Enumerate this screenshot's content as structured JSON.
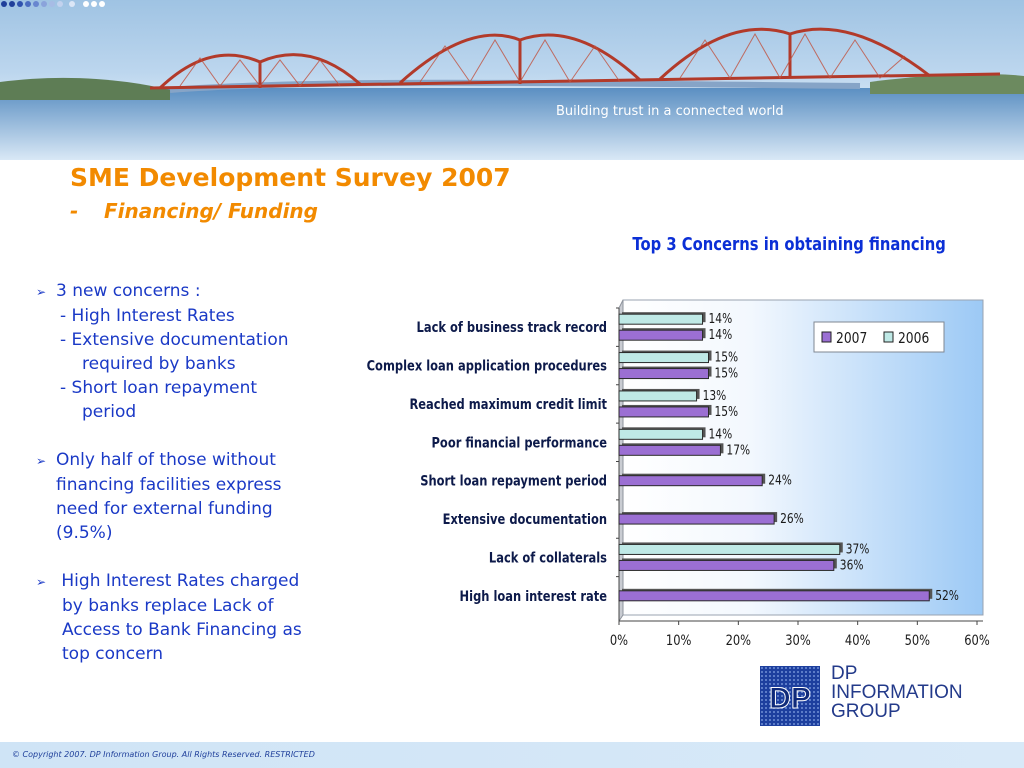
{
  "header": {
    "tagline": "Building trust in a connected world"
  },
  "slide": {
    "title": "SME Development Survey 2007",
    "subtitle_dash": "-",
    "subtitle": "Financing/ Funding"
  },
  "bullets": [
    {
      "arrow": true,
      "text": "3 new concerns :"
    },
    {
      "arrow": false,
      "text": "-  High Interest Rates",
      "indent": 24
    },
    {
      "arrow": false,
      "text": "-  Extensive documentation",
      "indent": 24
    },
    {
      "arrow": false,
      "text": "required by banks",
      "indent": 46
    },
    {
      "arrow": false,
      "text": "-  Short loan repayment",
      "indent": 24
    },
    {
      "arrow": false,
      "text": "period",
      "indent": 46
    },
    {
      "gap": true
    },
    {
      "arrow": true,
      "text": "Only half of those without"
    },
    {
      "arrow": false,
      "text": "financing facilities express",
      "indent": 20
    },
    {
      "arrow": false,
      "text": "need for external funding",
      "indent": 20
    },
    {
      "arrow": false,
      "text": "(9.5%)",
      "indent": 20
    },
    {
      "gap": true
    },
    {
      "arrow": true,
      "text": " High Interest Rates charged"
    },
    {
      "arrow": false,
      "text": "by banks replace Lack of",
      "indent": 26
    },
    {
      "arrow": false,
      "text": "Access to Bank Financing as",
      "indent": 26
    },
    {
      "arrow": false,
      "text": "top concern",
      "indent": 26
    }
  ],
  "chart_data": {
    "type": "bar",
    "orientation": "horizontal",
    "title": "Top 3 Concerns in obtaining financing",
    "categories": [
      "Lack of business track record",
      "Complex loan application procedures",
      "Reached maximum credit limit",
      "Poor financial performance",
      "Short loan repayment period",
      "Extensive documentation",
      "Lack of collaterals",
      "High loan interest rate"
    ],
    "series": [
      {
        "name": "2007",
        "color": "#9b6fd3",
        "values": [
          14,
          15,
          15,
          17,
          24,
          26,
          36,
          52
        ]
      },
      {
        "name": "2006",
        "color": "#bfe9e6",
        "values": [
          14,
          15,
          13,
          14,
          null,
          null,
          37,
          null
        ]
      }
    ],
    "value_suffix": "%",
    "xlim": [
      0,
      60
    ],
    "xticks": [
      "0%",
      "10%",
      "20%",
      "30%",
      "40%",
      "50%",
      "60%"
    ],
    "legend_position": "top-right",
    "grid": false,
    "colors": {
      "title": "#0b2fd6",
      "labels": "#0d1a4a",
      "plot_bg_right": "#9cc9f5"
    }
  },
  "logo": {
    "initials": "DP",
    "lines": [
      "DP",
      "INFORMATION",
      "GROUP"
    ]
  },
  "footer": {
    "text": "© Copyright 2007. DP Information Group. All Rights Reserved. RESTRICTED"
  }
}
